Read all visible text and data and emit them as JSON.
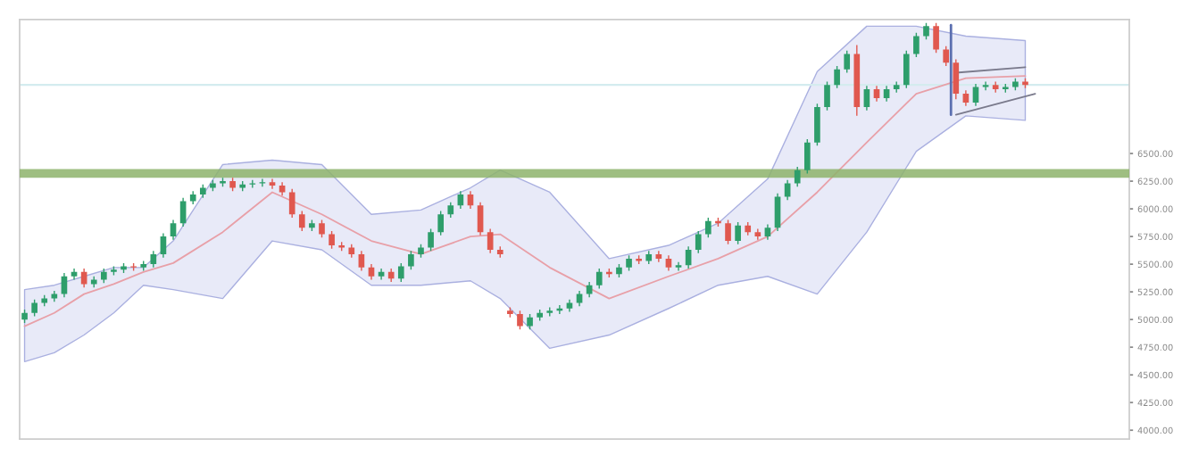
{
  "chart_data": {
    "type": "candlestick",
    "categories": [
      null,
      null,
      null,
      null,
      null,
      null,
      null,
      null,
      null,
      null,
      null,
      null,
      null,
      null,
      null,
      null,
      null,
      null,
      null,
      null,
      null,
      null,
      null,
      null,
      null,
      null,
      null,
      null,
      null,
      null,
      null,
      null,
      null,
      null,
      null,
      null,
      null,
      null,
      null,
      null,
      null,
      null,
      null,
      null,
      null,
      null,
      null,
      null,
      null,
      null,
      null,
      null,
      null,
      null,
      null,
      null,
      null,
      null,
      null,
      null,
      null,
      null,
      null,
      null,
      null,
      null,
      null,
      null,
      null,
      null,
      null,
      null,
      null,
      null,
      null,
      null,
      null,
      null,
      null,
      null,
      null,
      null,
      null,
      null,
      null,
      null,
      null,
      null,
      null,
      null,
      null,
      null,
      null,
      null,
      null,
      null,
      null,
      null,
      null,
      null,
      null,
      null,
      null,
      null,
      null,
      null,
      null,
      null,
      null,
      null,
      null,
      null
    ],
    "ohlc": [
      [
        5000,
        5090,
        4970,
        5060
      ],
      [
        5060,
        5180,
        5030,
        5150
      ],
      [
        5150,
        5220,
        5120,
        5190
      ],
      [
        5190,
        5260,
        5160,
        5230
      ],
      [
        5230,
        5420,
        5200,
        5390
      ],
      [
        5390,
        5460,
        5360,
        5430
      ],
      [
        5430,
        5460,
        5290,
        5320
      ],
      [
        5320,
        5390,
        5290,
        5360
      ],
      [
        5360,
        5460,
        5330,
        5430
      ],
      [
        5430,
        5480,
        5400,
        5450
      ],
      [
        5450,
        5510,
        5420,
        5480
      ],
      [
        5480,
        5510,
        5440,
        5470
      ],
      [
        5470,
        5530,
        5440,
        5500
      ],
      [
        5500,
        5620,
        5470,
        5590
      ],
      [
        5590,
        5780,
        5560,
        5750
      ],
      [
        5750,
        5900,
        5720,
        5870
      ],
      [
        5870,
        6100,
        5840,
        6070
      ],
      [
        6070,
        6160,
        6040,
        6130
      ],
      [
        6130,
        6220,
        6100,
        6190
      ],
      [
        6190,
        6260,
        6160,
        6230
      ],
      [
        6230,
        6280,
        6200,
        6250
      ],
      [
        6250,
        6280,
        6160,
        6190
      ],
      [
        6190,
        6250,
        6160,
        6220
      ],
      [
        6220,
        6260,
        6190,
        6230
      ],
      [
        6230,
        6270,
        6200,
        6240
      ],
      [
        6240,
        6270,
        6180,
        6210
      ],
      [
        6210,
        6240,
        6120,
        6150
      ],
      [
        6150,
        6180,
        5920,
        5950
      ],
      [
        5950,
        5980,
        5800,
        5830
      ],
      [
        5830,
        5900,
        5800,
        5870
      ],
      [
        5870,
        5900,
        5740,
        5770
      ],
      [
        5770,
        5800,
        5640,
        5670
      ],
      [
        5670,
        5700,
        5620,
        5650
      ],
      [
        5650,
        5680,
        5560,
        5590
      ],
      [
        5590,
        5620,
        5440,
        5470
      ],
      [
        5470,
        5500,
        5360,
        5390
      ],
      [
        5390,
        5460,
        5360,
        5430
      ],
      [
        5430,
        5460,
        5340,
        5370
      ],
      [
        5370,
        5510,
        5340,
        5480
      ],
      [
        5480,
        5620,
        5450,
        5590
      ],
      [
        5590,
        5680,
        5560,
        5650
      ],
      [
        5650,
        5820,
        5620,
        5790
      ],
      [
        5790,
        5980,
        5760,
        5950
      ],
      [
        5950,
        6060,
        5920,
        6030
      ],
      [
        6030,
        6160,
        6000,
        6130
      ],
      [
        6130,
        6160,
        6000,
        6030
      ],
      [
        6030,
        6060,
        5760,
        5790
      ],
      [
        5790,
        5820,
        5600,
        5630
      ],
      [
        5630,
        5660,
        5560,
        5590
      ],
      [
        5080,
        5110,
        5020,
        5050
      ],
      [
        5050,
        5080,
        4910,
        4940
      ],
      [
        4940,
        5050,
        4910,
        5020
      ],
      [
        5020,
        5090,
        4990,
        5060
      ],
      [
        5060,
        5110,
        5030,
        5080
      ],
      [
        5080,
        5130,
        5050,
        5100
      ],
      [
        5100,
        5180,
        5070,
        5150
      ],
      [
        5150,
        5260,
        5120,
        5230
      ],
      [
        5230,
        5340,
        5200,
        5310
      ],
      [
        5310,
        5460,
        5280,
        5430
      ],
      [
        5430,
        5460,
        5380,
        5410
      ],
      [
        5410,
        5500,
        5380,
        5470
      ],
      [
        5470,
        5580,
        5440,
        5550
      ],
      [
        5550,
        5580,
        5500,
        5530
      ],
      [
        5530,
        5620,
        5500,
        5590
      ],
      [
        5590,
        5620,
        5520,
        5550
      ],
      [
        5550,
        5580,
        5440,
        5470
      ],
      [
        5470,
        5520,
        5440,
        5490
      ],
      [
        5490,
        5660,
        5460,
        5630
      ],
      [
        5630,
        5800,
        5600,
        5770
      ],
      [
        5770,
        5920,
        5740,
        5890
      ],
      [
        5890,
        5920,
        5840,
        5870
      ],
      [
        5870,
        5900,
        5680,
        5710
      ],
      [
        5710,
        5880,
        5680,
        5850
      ],
      [
        5850,
        5880,
        5760,
        5790
      ],
      [
        5790,
        5820,
        5720,
        5750
      ],
      [
        5750,
        5860,
        5720,
        5830
      ],
      [
        5830,
        6140,
        5800,
        6110
      ],
      [
        6110,
        6260,
        6080,
        6230
      ],
      [
        6230,
        6380,
        6200,
        6350
      ],
      [
        6350,
        6630,
        6320,
        6600
      ],
      [
        6600,
        6950,
        6570,
        6920
      ],
      [
        6920,
        7150,
        6890,
        7120
      ],
      [
        7120,
        7290,
        7090,
        7260
      ],
      [
        7260,
        7430,
        7230,
        7400
      ],
      [
        7400,
        7480,
        6840,
        6920
      ],
      [
        6920,
        7110,
        6890,
        7080
      ],
      [
        7080,
        7110,
        6970,
        7000
      ],
      [
        7000,
        7110,
        6970,
        7080
      ],
      [
        7080,
        7150,
        7050,
        7120
      ],
      [
        7120,
        7430,
        7090,
        7400
      ],
      [
        7400,
        7590,
        7370,
        7560
      ],
      [
        7560,
        7680,
        7530,
        7650
      ],
      [
        7650,
        7680,
        7410,
        7440
      ],
      [
        7440,
        7470,
        7290,
        7320
      ],
      [
        7320,
        7350,
        6990,
        7040
      ],
      [
        7040,
        7070,
        6930,
        6960
      ],
      [
        6960,
        7130,
        6930,
        7100
      ],
      [
        7100,
        7150,
        7070,
        7120
      ],
      [
        7120,
        7150,
        7050,
        7080
      ],
      [
        7080,
        7130,
        7050,
        7100
      ],
      [
        7100,
        7180,
        7070,
        7150
      ],
      [
        7150,
        7180,
        7090,
        7120
      ],
      null,
      null,
      null,
      null,
      null,
      null,
      null,
      null,
      null,
      null
    ],
    "colors": [
      "#2e9e6b",
      "#2e9e6b",
      "#2e9e6b",
      "#2e9e6b",
      "#2e9e6b",
      "#2e9e6b",
      "#e0584f",
      "#2e9e6b",
      "#2e9e6b",
      "#2e9e6b",
      "#2e9e6b",
      "#e0584f",
      "#2e9e6b",
      "#2e9e6b",
      "#2e9e6b",
      "#2e9e6b",
      "#2e9e6b",
      "#2e9e6b",
      "#2e9e6b",
      "#2e9e6b",
      "#2e9e6b",
      "#e0584f",
      "#2e9e6b",
      "#2e9e6b",
      "#2e9e6b",
      "#e0584f",
      "#e0584f",
      "#e0584f",
      "#e0584f",
      "#2e9e6b",
      "#e0584f",
      "#e0584f",
      "#e0584f",
      "#e0584f",
      "#e0584f",
      "#e0584f",
      "#2e9e6b",
      "#e0584f",
      "#2e9e6b",
      "#2e9e6b",
      "#2e9e6b",
      "#2e9e6b",
      "#2e9e6b",
      "#2e9e6b",
      "#2e9e6b",
      "#e0584f",
      "#e0584f",
      "#e0584f",
      "#e0584f",
      "#e0584f",
      "#e0584f",
      "#2e9e6b",
      "#2e9e6b",
      "#2e9e6b",
      "#2e9e6b",
      "#2e9e6b",
      "#2e9e6b",
      "#2e9e6b",
      "#2e9e6b",
      "#e0584f",
      "#2e9e6b",
      "#2e9e6b",
      "#e0584f",
      "#2e9e6b",
      "#e0584f",
      "#e0584f",
      "#2e9e6b",
      "#2e9e6b",
      "#2e9e6b",
      "#2e9e6b",
      "#e0584f",
      "#e0584f",
      "#2e9e6b",
      "#e0584f",
      "#e0584f",
      "#2e9e6b",
      "#2e9e6b",
      "#2e9e6b",
      "#2e9e6b",
      "#2e9e6b",
      "#2e9e6b",
      "#2e9e6b",
      "#2e9e6b",
      "#2e9e6b",
      "#e0584f",
      "#2e9e6b",
      "#e0584f",
      "#2e9e6b",
      "#2e9e6b",
      "#2e9e6b",
      "#2e9e6b",
      "#2e9e6b",
      "#e0584f",
      "#e0584f",
      "#e0584f",
      "#e0584f",
      "#2e9e6b",
      "#2e9e6b",
      "#e0584f",
      "#2e9e6b",
      "#2e9e6b",
      "#e0584f",
      null,
      null,
      null,
      null,
      null,
      null,
      null,
      null,
      null,
      null
    ],
    "series": [
      {
        "type": "line",
        "color": "#e8a0a8",
        "values": [
          4940,
          null,
          null,
          5060,
          null,
          null,
          5230,
          null,
          null,
          5320,
          null,
          null,
          5430,
          null,
          null,
          5510,
          null,
          null,
          null,
          null,
          5790,
          null,
          null,
          null,
          null,
          6150,
          null,
          null,
          null,
          null,
          5950,
          null,
          null,
          null,
          null,
          5710,
          null,
          null,
          null,
          null,
          5590,
          null,
          null,
          null,
          null,
          5750,
          null,
          null,
          5770,
          null,
          null,
          null,
          null,
          5470,
          null,
          null,
          null,
          null,
          null,
          5190,
          null,
          null,
          null,
          null,
          null,
          5390,
          null,
          null,
          null,
          null,
          5550,
          null,
          null,
          null,
          null,
          5750,
          null,
          null,
          null,
          null,
          6150,
          null,
          null,
          null,
          null,
          6600,
          null,
          null,
          null,
          null,
          7040,
          null,
          null,
          null,
          null,
          7180,
          null,
          null,
          null,
          null,
          null,
          7200,
          null,
          null,
          null,
          null,
          null,
          null,
          null,
          null,
          null,
          null
        ],
        "lower": [
          4620,
          null,
          null,
          4700,
          null,
          null,
          4860,
          null,
          null,
          5060,
          null,
          null,
          5310,
          null,
          null,
          5270,
          null,
          null,
          null,
          null,
          5190,
          null,
          null,
          null,
          null,
          5710,
          null,
          null,
          null,
          null,
          5630,
          null,
          null,
          null,
          null,
          5310,
          null,
          null,
          null,
          null,
          5310,
          null,
          null,
          null,
          null,
          5350,
          null,
          null,
          5190,
          null,
          null,
          null,
          null,
          4740,
          null,
          null,
          null,
          null,
          null,
          4860,
          null,
          null,
          null,
          null,
          null,
          5100,
          null,
          null,
          null,
          null,
          5310,
          null,
          null,
          null,
          null,
          5390,
          null,
          null,
          null,
          null,
          5230,
          null,
          null,
          null,
          null,
          5790,
          null,
          null,
          null,
          null,
          6520,
          null,
          null,
          null,
          null,
          6840,
          null,
          null,
          null,
          null,
          null,
          6800,
          null,
          null,
          null,
          null,
          null,
          null,
          null,
          null,
          null,
          null
        ],
        "upper": [
          5270,
          null,
          null,
          5310,
          null,
          null,
          5390,
          null,
          null,
          5470,
          null,
          null,
          5470,
          null,
          null,
          5710,
          null,
          null,
          null,
          null,
          6400,
          null,
          null,
          null,
          null,
          6440,
          null,
          null,
          null,
          null,
          6400,
          null,
          null,
          null,
          null,
          5950,
          null,
          null,
          null,
          null,
          5990,
          null,
          null,
          null,
          null,
          6190,
          null,
          null,
          6350,
          null,
          null,
          null,
          null,
          6150,
          null,
          null,
          null,
          null,
          null,
          5550,
          null,
          null,
          null,
          null,
          null,
          5670,
          null,
          null,
          null,
          null,
          5870,
          null,
          null,
          null,
          null,
          6270,
          null,
          null,
          null,
          null,
          7240,
          null,
          null,
          null,
          null,
          7650,
          null,
          null,
          null,
          null,
          7650,
          null,
          null,
          null,
          null,
          7560,
          null,
          null,
          null,
          null,
          null,
          7520,
          null,
          null,
          null,
          null,
          null,
          null,
          null,
          null,
          null,
          null
        ]
      },
      {
        "type": "line",
        "color": "#7a7a8c",
        "values": [
          null,
          null,
          null,
          null,
          null,
          null,
          null,
          null,
          null,
          null,
          null,
          null,
          null,
          null,
          null,
          null,
          null,
          null,
          null,
          null,
          null,
          null,
          null,
          null,
          null,
          null,
          null,
          null,
          null,
          null,
          null,
          null,
          null,
          null,
          null,
          null,
          null,
          null,
          null,
          null,
          null,
          null,
          null,
          null,
          null,
          null,
          null,
          null,
          null,
          null,
          null,
          null,
          null,
          null,
          null,
          null,
          null,
          null,
          null,
          null,
          null,
          null,
          null,
          null,
          null,
          null,
          null,
          null,
          null,
          null,
          null,
          null,
          null,
          null,
          null,
          null,
          null,
          null,
          null,
          null,
          null,
          null,
          null,
          null,
          null,
          null,
          null,
          null,
          null,
          null,
          null,
          null,
          null,
          null,
          7230,
          null,
          null,
          null,
          null,
          null,
          null,
          7280,
          null,
          null,
          null,
          null,
          null,
          null,
          null,
          null,
          null,
          null
        ]
      },
      {
        "type": "line",
        "color": "#7a7a8c",
        "values": [
          null,
          null,
          null,
          null,
          null,
          null,
          null,
          null,
          null,
          null,
          null,
          null,
          null,
          null,
          null,
          null,
          null,
          null,
          null,
          null,
          null,
          null,
          null,
          null,
          null,
          null,
          null,
          null,
          null,
          null,
          null,
          null,
          null,
          null,
          null,
          null,
          null,
          null,
          null,
          null,
          null,
          null,
          null,
          null,
          null,
          null,
          null,
          null,
          null,
          null,
          null,
          null,
          null,
          null,
          null,
          null,
          null,
          null,
          null,
          null,
          null,
          null,
          null,
          null,
          null,
          null,
          null,
          null,
          null,
          null,
          null,
          null,
          null,
          null,
          null,
          null,
          null,
          null,
          null,
          null,
          null,
          null,
          null,
          null,
          null,
          null,
          null,
          null,
          null,
          null,
          null,
          null,
          null,
          null,
          6850,
          null,
          null,
          null,
          null,
          null,
          null,
          null,
          7040,
          null,
          null,
          null,
          null,
          null,
          null,
          null,
          null,
          null
        ]
      }
    ],
    "ylim": [
      3920,
      7710
    ],
    "yticks": [
      {
        "value": 4000,
        "label": "4000.00"
      },
      {
        "value": 4250,
        "label": "4250.00"
      },
      {
        "value": 4500,
        "label": "4500.00"
      },
      {
        "value": 4750,
        "label": "4750.00"
      },
      {
        "value": 5000,
        "label": "5000.00"
      },
      {
        "value": 5250,
        "label": "5250.00"
      },
      {
        "value": 5500,
        "label": "5500.00"
      },
      {
        "value": 5750,
        "label": "5750.00"
      },
      {
        "value": 6000,
        "label": "6000.00"
      },
      {
        "value": 6250,
        "label": "6250.00"
      },
      {
        "value": 6500,
        "label": "6500.00"
      }
    ],
    "ref_lines": [
      {
        "axis": "y",
        "value": 7120,
        "color": "#d4ecef"
      }
    ],
    "bands": [
      {
        "axis": "y",
        "from": 6280,
        "to": 6360,
        "color": "#8db36b"
      }
    ],
    "tick_labels": "y",
    "grid": false
  }
}
